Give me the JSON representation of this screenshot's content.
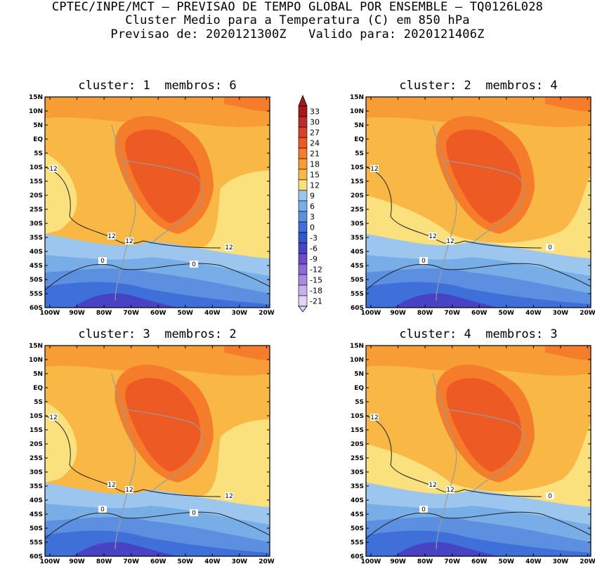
{
  "header": {
    "line1": "CPTEC/INPE/MCT – PREVISAO DE TEMPO GLOBAL POR ENSEMBLE – TQ0126L028",
    "line2": "Cluster Medio para a Temperatura (C) em 850 hPa",
    "line3": "Previsao de: 2020121300Z   Valido para: 2020121406Z"
  },
  "panels": [
    {
      "title": "cluster: 1  membros: 6"
    },
    {
      "title": "cluster: 2  membros: 4"
    },
    {
      "title": "cluster: 3  membros: 2"
    },
    {
      "title": "cluster: 4  membros: 3"
    }
  ],
  "lat_labels": [
    "15N",
    "10N",
    "5N",
    "EQ",
    "5S",
    "10S",
    "15S",
    "20S",
    "25S",
    "30S",
    "35S",
    "40S",
    "45S",
    "50S",
    "55S",
    "60S"
  ],
  "lon_labels": [
    "100W",
    "90W",
    "80W",
    "70W",
    "60W",
    "50W",
    "40W",
    "30W",
    "20W"
  ],
  "colorbar": {
    "levels": [
      "33",
      "30",
      "27",
      "24",
      "21",
      "18",
      "15",
      "12",
      "9",
      "6",
      "3",
      "0",
      "-3",
      "-6",
      "-9",
      "-12",
      "-15",
      "-18",
      "-21"
    ],
    "colors": [
      "#a51a1a",
      "#c02a2a",
      "#d9402a",
      "#ee5a24",
      "#f47c2a",
      "#f89d35",
      "#f9b845",
      "#fbe07e",
      "#9dc6ee",
      "#78aee8",
      "#5c8fe0",
      "#3f6fd8",
      "#3456cc",
      "#4842c4",
      "#6a4cc8",
      "#8a6ad4",
      "#a88ce0",
      "#c7b0ec",
      "#e0d4f4"
    ]
  },
  "contour_labels": {
    "p1": [
      "12",
      "12",
      "12",
      "12",
      "0",
      "0"
    ],
    "p2": [
      "12",
      "12",
      "12",
      "0",
      "0"
    ],
    "p3": [
      "12",
      "12",
      "12",
      "12",
      "0",
      "0"
    ],
    "p4": [
      "12",
      "12",
      "12",
      "0",
      "0"
    ]
  }
}
